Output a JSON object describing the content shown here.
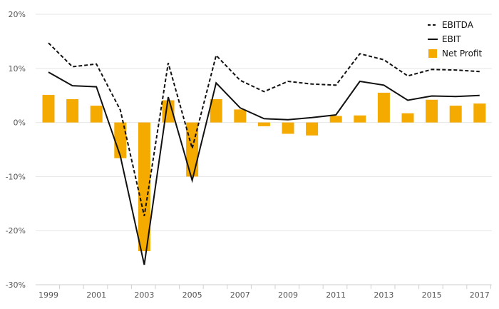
{
  "chart_data": {
    "type": "bar",
    "x": [
      1999,
      2000,
      2001,
      2002,
      2003,
      2004,
      2005,
      2006,
      2007,
      2008,
      2009,
      2010,
      2011,
      2012,
      2013,
      2014,
      2015,
      2016,
      2017
    ],
    "x_tick_labels": [
      "1999",
      "2001",
      "2003",
      "2005",
      "2007",
      "2009",
      "2011",
      "2013",
      "2015",
      "2017"
    ],
    "y_tick_labels": [
      "20%",
      "10%",
      "0%",
      "-10%",
      "-20%",
      "-30%"
    ],
    "y_ticks": [
      20,
      10,
      0,
      -10,
      -20,
      -30
    ],
    "ylim": [
      -30,
      20
    ],
    "y_unit": "%",
    "grid": "horizontal",
    "legend_position": "top-right",
    "series": [
      {
        "name": "EBITDA",
        "kind": "line",
        "style": "dashed",
        "color": "#111111",
        "values": [
          14.7,
          10.3,
          10.8,
          2.3,
          -17.3,
          11.0,
          -4.8,
          12.4,
          7.8,
          5.7,
          7.6,
          7.1,
          6.9,
          12.7,
          11.6,
          8.6,
          9.8,
          9.7,
          9.4
        ]
      },
      {
        "name": "EBIT",
        "kind": "line",
        "style": "solid",
        "color": "#111111",
        "values": [
          9.3,
          6.8,
          6.6,
          -6.2,
          -26.3,
          4.7,
          -10.7,
          7.3,
          2.7,
          0.7,
          0.5,
          0.9,
          1.4,
          7.6,
          6.9,
          4.1,
          4.9,
          4.8,
          5.0
        ]
      },
      {
        "name": "Net Profit",
        "kind": "bar",
        "color": "#F5AA00",
        "values": [
          5.1,
          4.3,
          3.1,
          -6.6,
          -23.8,
          4.1,
          -10.0,
          4.3,
          2.4,
          -0.7,
          -2.1,
          -2.4,
          1.2,
          1.3,
          5.5,
          1.7,
          4.2,
          3.1,
          3.5
        ]
      }
    ]
  }
}
